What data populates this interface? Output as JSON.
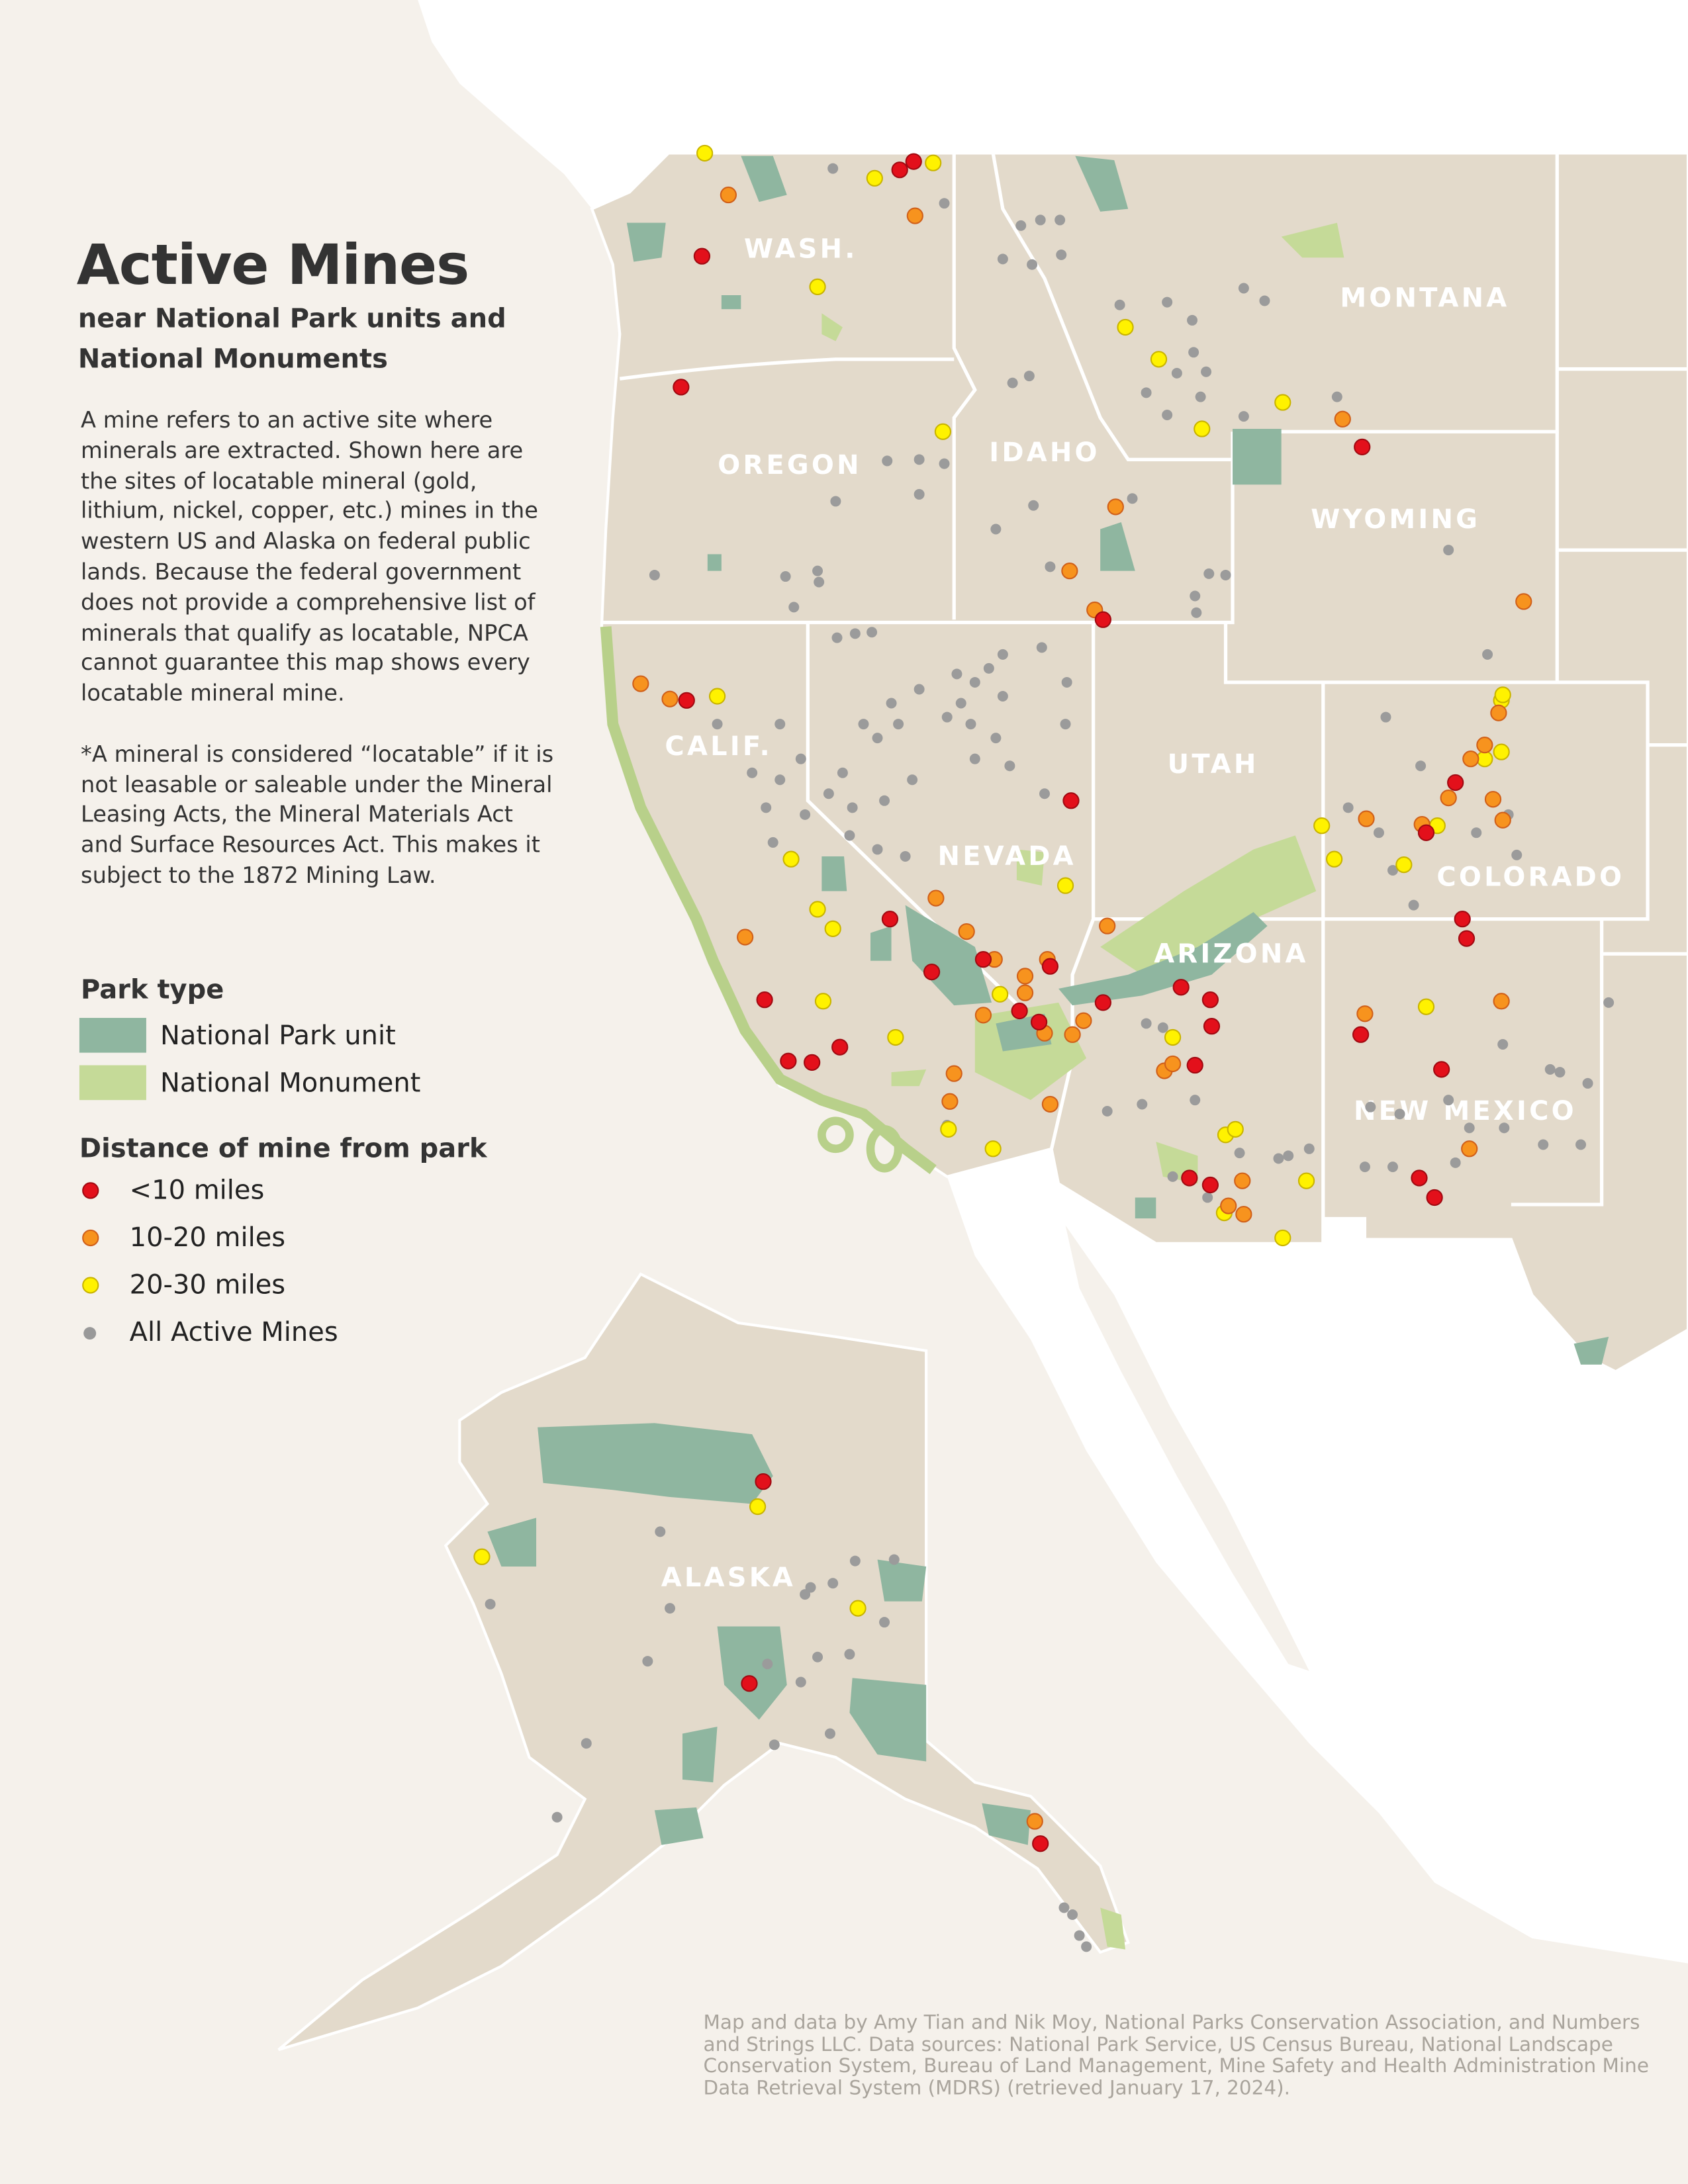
{
  "header": {
    "title": "Active Mines",
    "subtitle": "near National Park units and National Monuments"
  },
  "description": [
    "A mine refers to an active site where minerals are extracted. Shown here are the sites of locatable mineral (gold, lithium, nickel, copper, etc.) mines in the western US and Alaska on federal public lands. Because the federal government does not provide a comprehensive list of minerals that qualify as locatable, NPCA cannot guarantee this map shows every locatable mineral mine.",
    "*A mineral is considered “locatable” if it is not leasable or saleable under the Mineral Leasing Acts, the Mineral Materials Act and Surface Resources Act. This makes it subject to the 1872 Mining Law."
  ],
  "legend": {
    "park_type": {
      "title": "Park type",
      "items": [
        "National Park unit",
        "National Monument"
      ]
    },
    "distance": {
      "title": "Distance of mine from park",
      "items": [
        "<10 miles",
        "10-20 miles",
        "20-30 miles",
        "All Active Mines"
      ]
    }
  },
  "map_labels": [
    "WASH.",
    "OREGON",
    "IDAHO",
    "MONTANA",
    "WYOMING",
    "CALIF.",
    "NEVADA",
    "UTAH",
    "COLORADO",
    "ARIZONA",
    "NEW MEXICO",
    "ALASKA"
  ],
  "credits": "Map and data by Amy Tian and Nik Moy, National Parks Conservation Association, and Numbers and Strings LLC. Data sources: National Park Service, US Census Bureau, National Landscape Conservation System, Bureau of Land Management, Mine Safety and Health Administration Mine Data Retrieval System (MDRS) (retrieved January 17, 2024)."
}
